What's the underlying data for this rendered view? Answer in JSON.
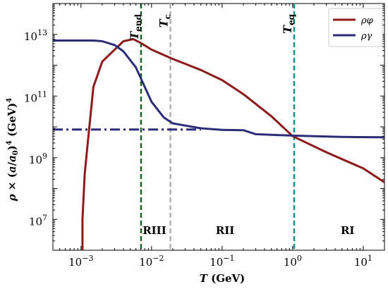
{
  "chart_data": {
    "type": "line",
    "xlabel": "T (GeV)",
    "ylabel": "ρ × (a/a0)^4 (GeV)^4",
    "xscale": "log",
    "yscale": "log",
    "xlim": [
      0.0004,
      20
    ],
    "ylim": [
      1000000.0,
      100000000000000.0
    ],
    "x_ticks": [
      {
        "value": 0.001,
        "base": "10",
        "exp": "−3"
      },
      {
        "value": 0.01,
        "base": "10",
        "exp": "−2"
      },
      {
        "value": 0.1,
        "base": "10",
        "exp": "−1"
      },
      {
        "value": 1,
        "base": "10",
        "exp": "0"
      },
      {
        "value": 10,
        "base": "10",
        "exp": "1"
      }
    ],
    "y_ticks": [
      {
        "value": 10000000.0,
        "base": "10",
        "exp": "7"
      },
      {
        "value": 1000000000.0,
        "base": "10",
        "exp": "9"
      },
      {
        "value": 100000000000.0,
        "base": "10",
        "exp": "11"
      },
      {
        "value": 10000000000000.0,
        "base": "10",
        "exp": "13"
      }
    ],
    "series": [
      {
        "name": "ρφ",
        "color": "#8b1a1a",
        "style": "solid",
        "points": [
          [
            0.00105,
            1000000.0
          ],
          [
            0.00105,
            10000000.0
          ],
          [
            0.00113,
            300000000.0
          ],
          [
            0.00125,
            3200000000.0
          ],
          [
            0.0015,
            200000000000.0
          ],
          [
            0.002,
            1300000000000.0
          ],
          [
            0.003,
            3200000000000.0
          ],
          [
            0.004,
            6000000000000.0
          ],
          [
            0.0055,
            7000000000000.0
          ],
          [
            0.007,
            5300000000000.0
          ],
          [
            0.01,
            3200000000000.0
          ],
          [
            0.02,
            1600000000000.0
          ],
          [
            0.05,
            700000000000.0
          ],
          [
            0.1,
            330000000000.0
          ],
          [
            0.2,
            115000000000.0
          ],
          [
            0.5,
            22000000000.0
          ],
          [
            1.0,
            5000000000.0
          ],
          [
            3.0,
            1500000000.0
          ],
          [
            10.0,
            450000000.0
          ],
          [
            20.0,
            160000000.0
          ]
        ]
      },
      {
        "name": "ργ",
        "color": "#2b2d7a",
        "style": "solid",
        "points": [
          [
            0.0004,
            6300000000000.0
          ],
          [
            0.0015,
            6300000000000.0
          ],
          [
            0.002,
            6000000000000.0
          ],
          [
            0.003,
            4500000000000.0
          ],
          [
            0.004,
            2800000000000.0
          ],
          [
            0.006,
            850000000000.0
          ],
          [
            0.008,
            200000000000.0
          ],
          [
            0.01,
            65000000000.0
          ],
          [
            0.015,
            20000000000.0
          ],
          [
            0.02,
            13000000000.0
          ],
          [
            0.05,
            9000000000.0
          ],
          [
            0.1,
            8000000000.0
          ],
          [
            0.2,
            7800000000.0
          ],
          [
            0.3,
            5800000000.0
          ],
          [
            1.0,
            5200000000.0
          ],
          [
            5.0,
            4700000000.0
          ],
          [
            20.0,
            4600000000.0
          ]
        ]
      },
      {
        "name": "",
        "color": "#2b2d7a",
        "style": "dashdot",
        "points": [
          [
            0.0004,
            8200000000.0
          ],
          [
            0.05,
            8200000000.0
          ]
        ]
      }
    ],
    "vertical_lines": [
      {
        "x": 0.0071,
        "label": "T",
        "sub": "end",
        "color": "#1f5f2a"
      },
      {
        "x": 0.0185,
        "label": "T",
        "sub": "c",
        "color": "#b0b0b0"
      },
      {
        "x": 1.05,
        "label": "T",
        "sub": "eq",
        "color": "#1f8a8a"
      }
    ],
    "regions": [
      {
        "x": 0.011,
        "label": "RIII"
      },
      {
        "x": 0.11,
        "label": "RII"
      },
      {
        "x": 6.0,
        "label": "RI"
      }
    ],
    "legend_position": "top-right"
  }
}
